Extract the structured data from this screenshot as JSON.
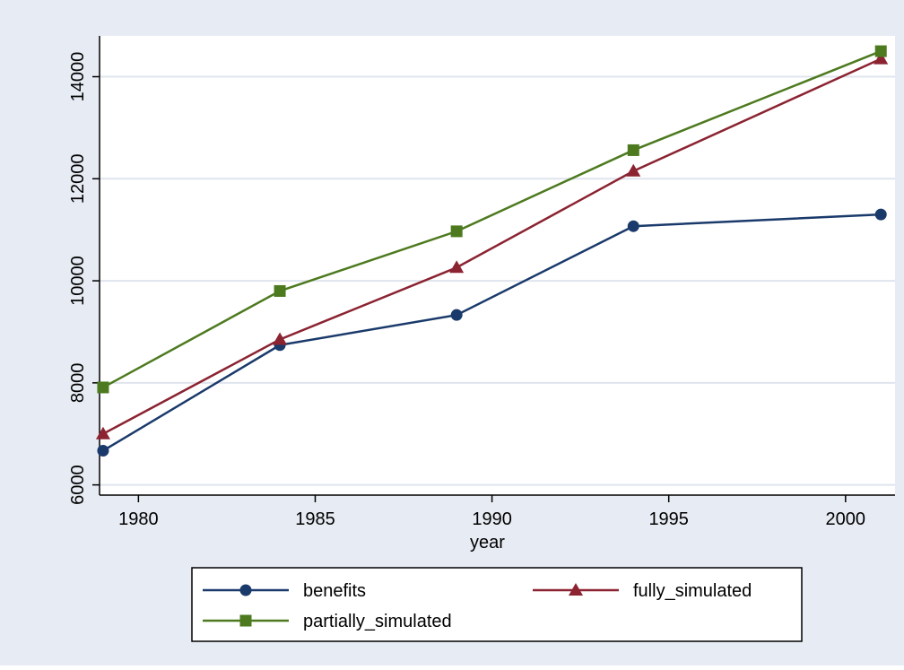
{
  "chart_data": {
    "type": "line",
    "title": "",
    "xlabel": "year",
    "ylabel": "",
    "x": [
      1979,
      1984,
      1989,
      1994,
      2001
    ],
    "xlim": [
      1978.9,
      2001.4
    ],
    "ylim": [
      5800,
      14800
    ],
    "xticks": [
      1980,
      1985,
      1990,
      1995,
      2000
    ],
    "yticks": [
      6000,
      8000,
      10000,
      12000,
      14000
    ],
    "grid": true,
    "legend_position": "bottom",
    "series": [
      {
        "name": "benefits",
        "values": [
          6670,
          8740,
          9330,
          11070,
          11300
        ],
        "color": "#1a3a6b",
        "marker": "circle"
      },
      {
        "name": "fully_simulated",
        "values": [
          7000,
          8850,
          10260,
          12150,
          14350
        ],
        "color": "#8b2331",
        "marker": "triangle"
      },
      {
        "name": "partially_simulated",
        "values": [
          7910,
          9800,
          10970,
          12560,
          14500
        ],
        "color": "#4d7a1f",
        "marker": "square"
      }
    ]
  },
  "colors": {
    "page_background": "#e7ebf3",
    "plot_background": "#ffffff",
    "grid": "#dfe4ee",
    "axis": "#000000"
  }
}
